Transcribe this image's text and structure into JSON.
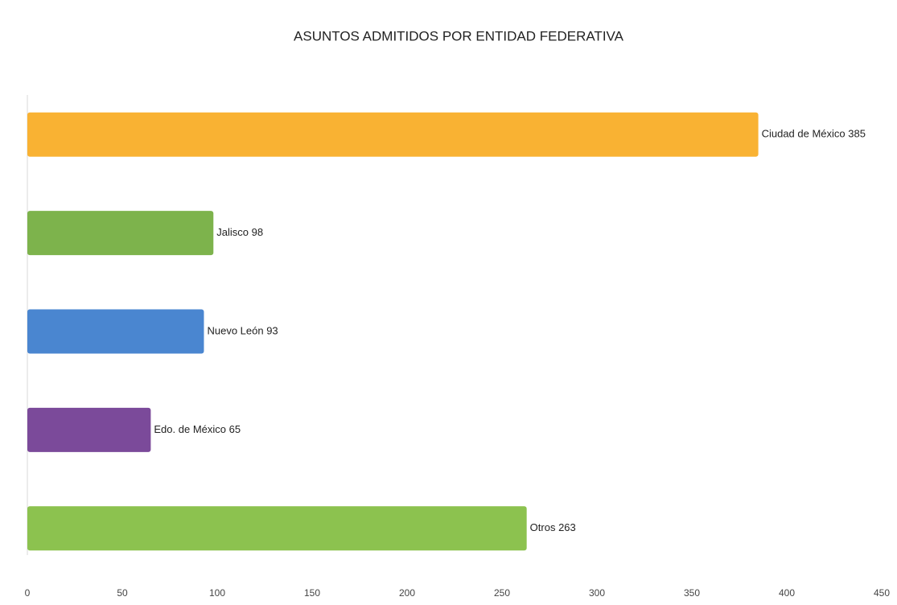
{
  "chart_data": {
    "type": "barh",
    "title": "ASUNTOS ADMITIDOS POR ENTIDAD FEDERATIVA",
    "values": [
      385,
      98,
      93,
      65,
      263
    ],
    "value_labels": [
      "Ciudad de México 385",
      "Jalisco 98",
      "Nuevo León 93",
      "Edo. de México 65",
      "Otros 263"
    ],
    "colors": [
      "#f9b233",
      "#7db34c",
      "#4a86d0",
      "#7b4a9a",
      "#8cc24f"
    ],
    "xlim": [
      0,
      450
    ],
    "xticks": [
      0,
      50,
      100,
      150,
      200,
      250,
      300,
      350,
      400,
      450
    ]
  }
}
